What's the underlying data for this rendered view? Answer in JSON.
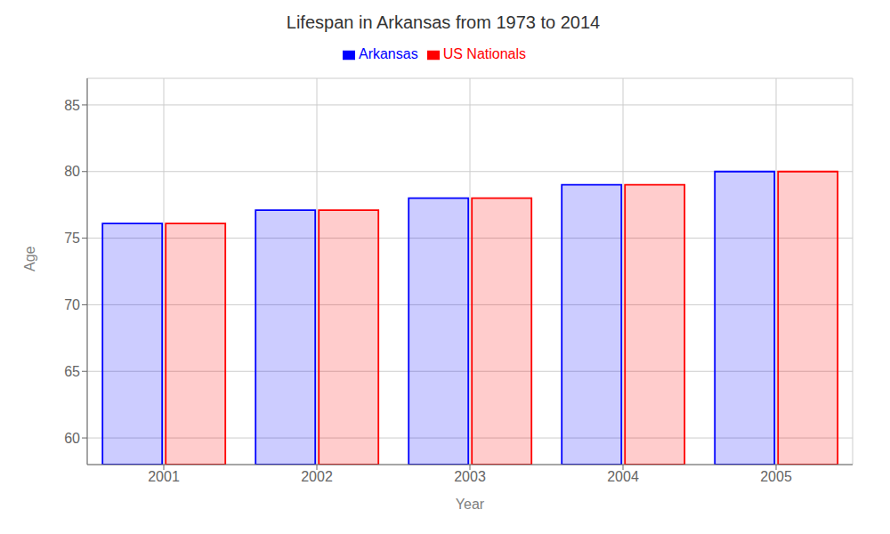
{
  "chart_data": {
    "type": "bar",
    "title": "Lifespan in Arkansas from 1973 to 2014",
    "xlabel": "Year",
    "ylabel": "Age",
    "categories": [
      "2001",
      "2002",
      "2003",
      "2004",
      "2005"
    ],
    "series": [
      {
        "name": "Arkansas",
        "color": "#0000ff",
        "values": [
          76.1,
          77.1,
          78.0,
          79.0,
          80.0
        ]
      },
      {
        "name": "US Nationals",
        "color": "#ff0000",
        "values": [
          76.1,
          77.1,
          78.0,
          79.0,
          80.0
        ]
      }
    ],
    "ylim": [
      58,
      87
    ],
    "yticks": [
      60,
      65,
      70,
      75,
      80,
      85
    ],
    "grid": true,
    "legend": "top"
  }
}
